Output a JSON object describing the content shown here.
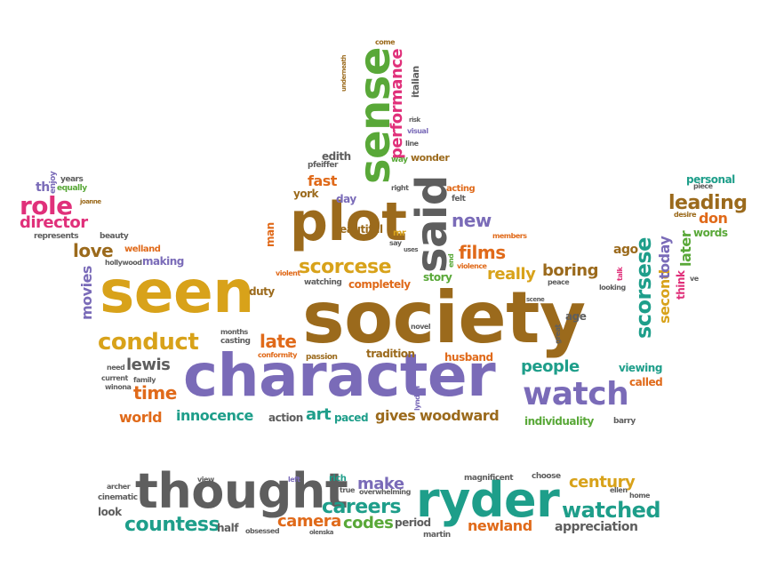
{
  "palette": {
    "gold": "#d8a21a",
    "brown": "#9b6a1c",
    "purple": "#7a6bb8",
    "teal": "#1e9e8a",
    "orange": "#e06a1a",
    "green": "#59a838",
    "gray": "#5e5e5e",
    "pink": "#e0307a"
  },
  "words": [
    {
      "text": "seen",
      "color": "#d8a21a"
    },
    {
      "text": "society",
      "color": "#9b6a1c"
    },
    {
      "text": "character",
      "color": "#7a6bb8"
    },
    {
      "text": "plot",
      "color": "#9b6a1c"
    },
    {
      "text": "sense",
      "color": "#59a838"
    },
    {
      "text": "said",
      "color": "#5e5e5e"
    },
    {
      "text": "thought",
      "color": "#5e5e5e"
    },
    {
      "text": "ryder",
      "color": "#1e9e8a"
    },
    {
      "text": "watch",
      "color": "#7a6bb8"
    },
    {
      "text": "scorsese",
      "color": "#1e9e8a"
    },
    {
      "text": "conduct",
      "color": "#d8a21a"
    },
    {
      "text": "scorcese",
      "color": "#d8a21a"
    },
    {
      "text": "watched",
      "color": "#1e9e8a"
    },
    {
      "text": "countess",
      "color": "#1e9e8a"
    },
    {
      "text": "careers",
      "color": "#1e9e8a"
    },
    {
      "text": "leading",
      "color": "#9b6a1c"
    },
    {
      "text": "role",
      "color": "#e0307a"
    },
    {
      "text": "director",
      "color": "#e0307a"
    },
    {
      "text": "love",
      "color": "#9b6a1c"
    },
    {
      "text": "lewis",
      "color": "#5e5e5e"
    },
    {
      "text": "time",
      "color": "#e06a1a"
    },
    {
      "text": "world",
      "color": "#e06a1a"
    },
    {
      "text": "innocence",
      "color": "#1e9e8a"
    },
    {
      "text": "art",
      "color": "#1e9e8a"
    },
    {
      "text": "gives",
      "color": "#9b6a1c"
    },
    {
      "text": "woodward",
      "color": "#9b6a1c"
    },
    {
      "text": "late",
      "color": "#e06a1a"
    },
    {
      "text": "boring",
      "color": "#9b6a1c"
    },
    {
      "text": "really",
      "color": "#d8a21a"
    },
    {
      "text": "films",
      "color": "#e06a1a"
    },
    {
      "text": "new",
      "color": "#7a6bb8"
    },
    {
      "text": "fast",
      "color": "#e06a1a"
    },
    {
      "text": "people",
      "color": "#1e9e8a"
    },
    {
      "text": "century",
      "color": "#d8a21a"
    },
    {
      "text": "camera",
      "color": "#e06a1a"
    },
    {
      "text": "codes",
      "color": "#59a838"
    },
    {
      "text": "newland",
      "color": "#e06a1a"
    },
    {
      "text": "appreciation",
      "color": "#5e5e5e"
    },
    {
      "text": "make",
      "color": "#7a6bb8"
    },
    {
      "text": "performance",
      "color": "#e0307a"
    },
    {
      "text": "movies",
      "color": "#7a6bb8"
    },
    {
      "text": "second",
      "color": "#d8a21a"
    },
    {
      "text": "today",
      "color": "#7a6bb8"
    },
    {
      "text": "later",
      "color": "#59a838"
    },
    {
      "text": "don",
      "color": "#e06a1a"
    },
    {
      "text": "words",
      "color": "#59a838"
    },
    {
      "text": "ago",
      "color": "#9b6a1c"
    },
    {
      "text": "personal",
      "color": "#1e9e8a"
    },
    {
      "text": "edith",
      "color": "#5e5e5e"
    },
    {
      "text": "story",
      "color": "#59a838"
    },
    {
      "text": "completely",
      "color": "#e06a1a"
    },
    {
      "text": "husband",
      "color": "#e06a1a"
    },
    {
      "text": "tradition",
      "color": "#9b6a1c"
    },
    {
      "text": "individuality",
      "color": "#59a838"
    },
    {
      "text": "viewing",
      "color": "#1e9e8a"
    },
    {
      "text": "called",
      "color": "#e06a1a"
    },
    {
      "text": "age",
      "color": "#5e5e5e"
    },
    {
      "text": "making",
      "color": "#7a6bb8"
    },
    {
      "text": "day",
      "color": "#7a6bb8"
    },
    {
      "text": "york",
      "color": "#9b6a1c"
    },
    {
      "text": "duty",
      "color": "#9b6a1c"
    },
    {
      "text": "man",
      "color": "#e06a1a"
    },
    {
      "text": "beautiful",
      "color": "#9b6a1c"
    },
    {
      "text": "wonder",
      "color": "#9b6a1c"
    },
    {
      "text": "italian",
      "color": "#5e5e5e"
    },
    {
      "text": "th",
      "color": "#7a6bb8"
    },
    {
      "text": "years",
      "color": "#5e5e5e"
    },
    {
      "text": "equally",
      "color": "#59a838"
    },
    {
      "text": "enjoy",
      "color": "#7a6bb8"
    },
    {
      "text": "joanne",
      "color": "#9b6a1c"
    },
    {
      "text": "represents",
      "color": "#5e5e5e"
    },
    {
      "text": "beauty",
      "color": "#5e5e5e"
    },
    {
      "text": "welland",
      "color": "#e06a1a"
    },
    {
      "text": "hollywood",
      "color": "#5e5e5e"
    },
    {
      "text": "casting",
      "color": "#5e5e5e"
    },
    {
      "text": "months",
      "color": "#5e5e5e"
    },
    {
      "text": "conformity",
      "color": "#e06a1a"
    },
    {
      "text": "passion",
      "color": "#9b6a1c"
    },
    {
      "text": "watching",
      "color": "#5e5e5e"
    },
    {
      "text": "violent",
      "color": "#e06a1a"
    },
    {
      "text": "action",
      "color": "#5e5e5e"
    },
    {
      "text": "paced",
      "color": "#1e9e8a"
    },
    {
      "text": "novel",
      "color": "#5e5e5e"
    },
    {
      "text": "lyndon",
      "color": "#7a6bb8"
    },
    {
      "text": "great",
      "color": "#5e5e5e"
    },
    {
      "text": "peace",
      "color": "#5e5e5e"
    },
    {
      "text": "looking",
      "color": "#5e5e5e"
    },
    {
      "text": "talk",
      "color": "#e0307a"
    },
    {
      "text": "think",
      "color": "#e0307a"
    },
    {
      "text": "ve",
      "color": "#5e5e5e"
    },
    {
      "text": "desire",
      "color": "#9b6a1c"
    },
    {
      "text": "piece",
      "color": "#5e5e5e"
    },
    {
      "text": "barry",
      "color": "#5e5e5e"
    },
    {
      "text": "need",
      "color": "#5e5e5e"
    },
    {
      "text": "current",
      "color": "#5e5e5e"
    },
    {
      "text": "family",
      "color": "#5e5e5e"
    },
    {
      "text": "winona",
      "color": "#5e5e5e"
    },
    {
      "text": "mr",
      "color": "#d8a21a"
    },
    {
      "text": "say",
      "color": "#5e5e5e"
    },
    {
      "text": "uses",
      "color": "#5e5e5e"
    },
    {
      "text": "end",
      "color": "#59a838"
    },
    {
      "text": "violence",
      "color": "#e06a1a"
    },
    {
      "text": "members",
      "color": "#e06a1a"
    },
    {
      "text": "acting",
      "color": "#e06a1a"
    },
    {
      "text": "felt",
      "color": "#5e5e5e"
    },
    {
      "text": "right",
      "color": "#5e5e5e"
    },
    {
      "text": "way",
      "color": "#59a838"
    },
    {
      "text": "line",
      "color": "#5e5e5e"
    },
    {
      "text": "visual",
      "color": "#7a6bb8"
    },
    {
      "text": "risk",
      "color": "#5e5e5e"
    },
    {
      "text": "pfeiffer",
      "color": "#5e5e5e"
    },
    {
      "text": "come",
      "color": "#9b6a1c"
    },
    {
      "text": "underneath",
      "color": "#9b6a1c"
    },
    {
      "text": "scene",
      "color": "#5e5e5e"
    },
    {
      "text": "archer",
      "color": "#5e5e5e"
    },
    {
      "text": "cinematic",
      "color": "#5e5e5e"
    },
    {
      "text": "look",
      "color": "#5e5e5e"
    },
    {
      "text": "view",
      "color": "#5e5e5e"
    },
    {
      "text": "left",
      "color": "#7a6bb8"
    },
    {
      "text": "rich",
      "color": "#1e9e8a"
    },
    {
      "text": "true",
      "color": "#5e5e5e"
    },
    {
      "text": "overwhelming",
      "color": "#5e5e5e"
    },
    {
      "text": "magnificent",
      "color": "#5e5e5e"
    },
    {
      "text": "choose",
      "color": "#5e5e5e"
    },
    {
      "text": "ellen",
      "color": "#5e5e5e"
    },
    {
      "text": "home",
      "color": "#5e5e5e"
    },
    {
      "text": "half",
      "color": "#5e5e5e"
    },
    {
      "text": "obsessed",
      "color": "#5e5e5e"
    },
    {
      "text": "olenska",
      "color": "#5e5e5e"
    },
    {
      "text": "period",
      "color": "#5e5e5e"
    },
    {
      "text": "martin",
      "color": "#5e5e5e"
    }
  ]
}
